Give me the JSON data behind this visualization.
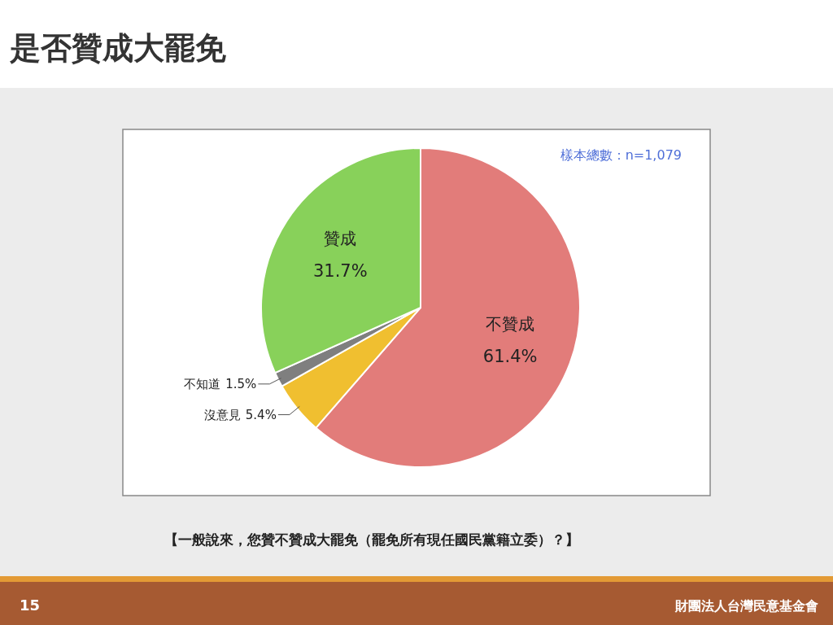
{
  "chart_data": {
    "type": "pie",
    "title": "是否贊成大罷免",
    "categories": [
      "不贊成",
      "沒意見",
      "不知道",
      "贊成"
    ],
    "values": [
      61.4,
      5.4,
      1.5,
      31.7
    ],
    "colors": [
      "#e27c7a",
      "#f0bf30",
      "#7f7f7f",
      "#88d15a"
    ],
    "value_labels": [
      "61.4%",
      "5.4%",
      "1.5%",
      "31.7%"
    ],
    "annotations": [
      "樣本總數：n=1,079",
      "【一般說來，您贊不贊成大罷免（罷免所有現任國民黨籍立委）？】",
      "15",
      "財團法人台灣民意基金會"
    ]
  }
}
